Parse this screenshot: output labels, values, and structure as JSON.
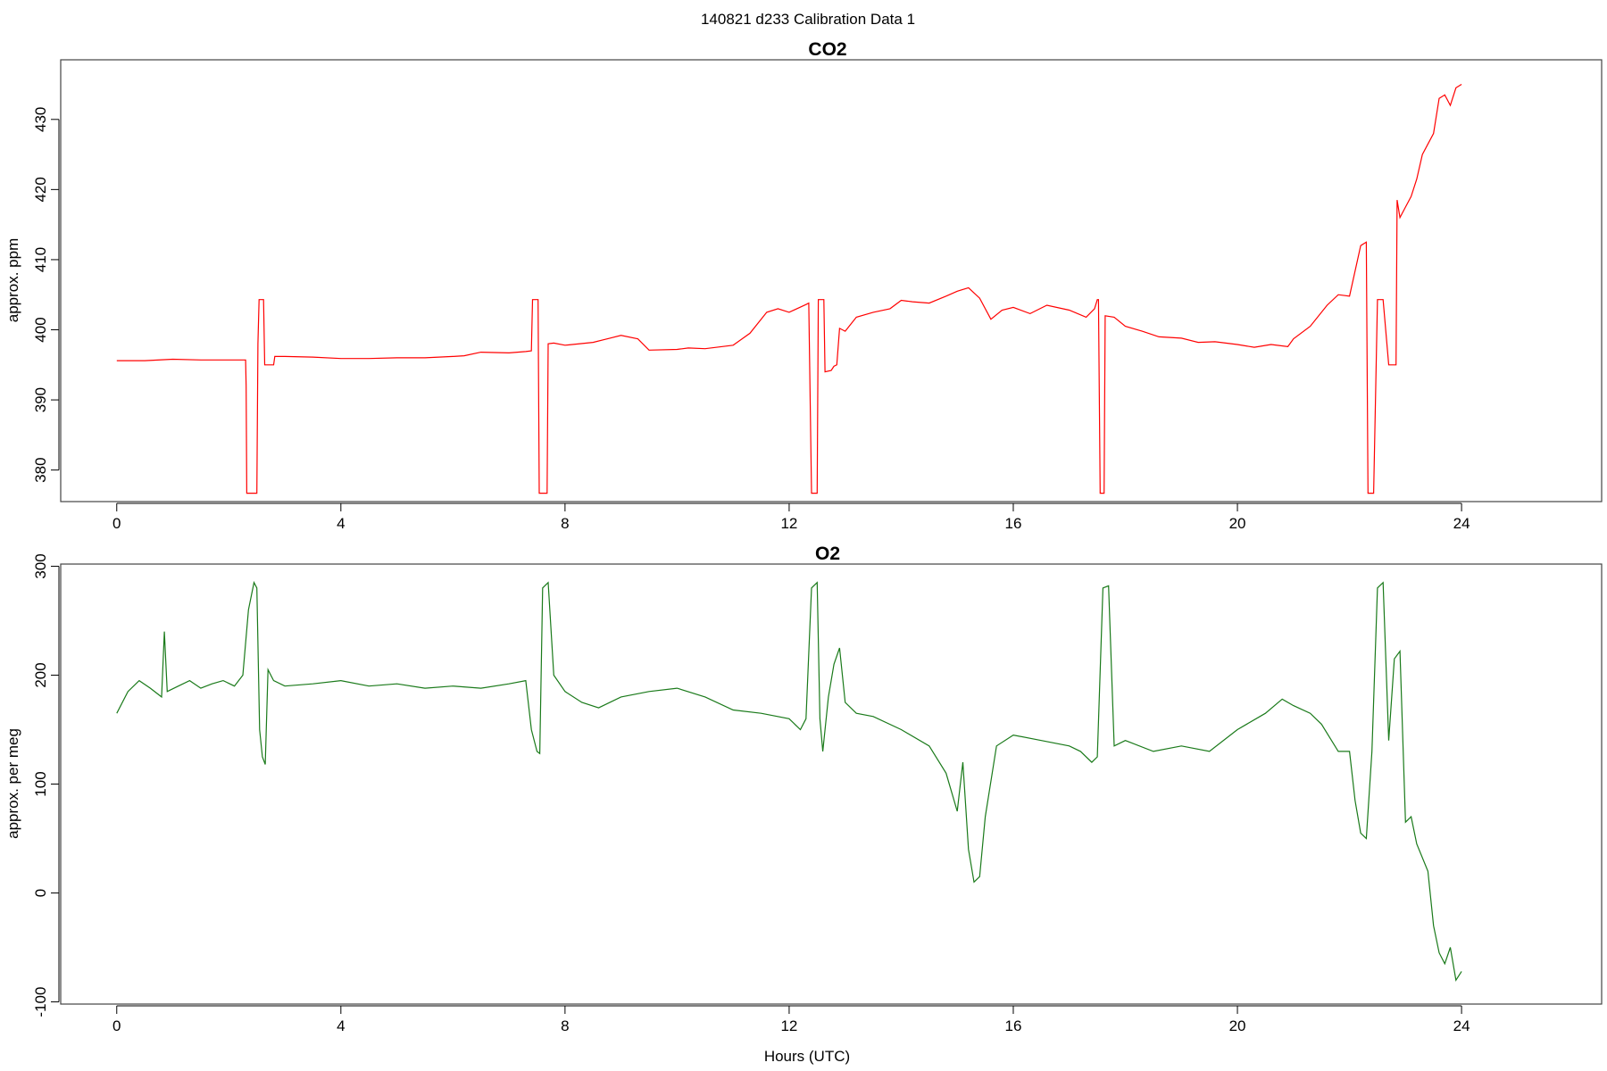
{
  "figure_title": "140821   d233   Calibration Data 1",
  "chart_data": [
    {
      "type": "line",
      "title": "CO2",
      "xlabel": "",
      "ylabel": "approx. ppm",
      "xlim": [
        -1,
        26.5
      ],
      "ylim": [
        375.5,
        438.5
      ],
      "xticks": [
        0,
        4,
        8,
        12,
        16,
        20,
        24
      ],
      "yticks": [
        380,
        390,
        400,
        410,
        420,
        430
      ],
      "grid": false,
      "color": "#ff0000",
      "series": [
        {
          "x": [
            0,
            0.5,
            1.0,
            1.5,
            2.0,
            2.3,
            2.31,
            2.32,
            2.4,
            2.5,
            2.52,
            2.54,
            2.62,
            2.64,
            2.8,
            2.82,
            3.0,
            3.5,
            4.0,
            4.5,
            5.0,
            5.5,
            6.0,
            6.2,
            6.5,
            7.0,
            7.3,
            7.4,
            7.42,
            7.52,
            7.54,
            7.68,
            7.7,
            7.8,
            8.0,
            8.5,
            8.8,
            9.0,
            9.3,
            9.5,
            10.0,
            10.2,
            10.5,
            11.0,
            11.3,
            11.6,
            11.8,
            12.0,
            12.3,
            12.35,
            12.4,
            12.5,
            12.52,
            12.55,
            12.62,
            12.64,
            12.75,
            12.8,
            12.85,
            12.9,
            13.0,
            13.2,
            13.5,
            13.8,
            14.0,
            14.2,
            14.5,
            14.8,
            15.0,
            15.2,
            15.4,
            15.6,
            15.8,
            16.0,
            16.3,
            16.6,
            17.0,
            17.3,
            17.45,
            17.5,
            17.52,
            17.55,
            17.62,
            17.64,
            17.8,
            18.0,
            18.3,
            18.6,
            19.0,
            19.3,
            19.6,
            20.0,
            20.3,
            20.6,
            20.9,
            21.0,
            21.3,
            21.6,
            21.8,
            22.0,
            22.2,
            22.3,
            22.33,
            22.35,
            22.43,
            22.5,
            22.52,
            22.6,
            22.7,
            22.72,
            22.83,
            22.85,
            22.9,
            23.0,
            23.1,
            23.2,
            23.3,
            23.5,
            23.6,
            23.7,
            23.8,
            23.9,
            24.0
          ],
          "y": [
            395.6,
            395.6,
            395.8,
            395.7,
            395.7,
            395.7,
            392.0,
            376.7,
            376.7,
            376.7,
            398.0,
            404.3,
            404.3,
            395.0,
            395.0,
            396.2,
            396.2,
            396.1,
            395.9,
            395.9,
            396.0,
            396.0,
            396.2,
            396.3,
            396.8,
            396.7,
            396.9,
            397.0,
            404.3,
            404.3,
            376.7,
            376.7,
            398.0,
            398.1,
            397.8,
            398.2,
            398.8,
            399.2,
            398.7,
            397.1,
            397.2,
            397.4,
            397.3,
            397.8,
            399.5,
            402.5,
            403.0,
            402.5,
            403.6,
            403.8,
            376.7,
            376.7,
            404.3,
            404.3,
            404.3,
            394.0,
            394.2,
            394.8,
            395.0,
            400.2,
            399.8,
            401.8,
            402.5,
            403.0,
            404.2,
            404.0,
            403.8,
            404.8,
            405.5,
            406.0,
            404.5,
            401.5,
            402.8,
            403.2,
            402.3,
            403.5,
            402.8,
            401.8,
            403.0,
            404.3,
            404.3,
            376.7,
            376.7,
            402.0,
            401.8,
            400.5,
            399.8,
            399.0,
            398.8,
            398.2,
            398.3,
            397.9,
            397.5,
            397.9,
            397.6,
            398.7,
            400.5,
            403.5,
            405.0,
            404.8,
            412.0,
            412.5,
            376.7,
            376.7,
            376.7,
            404.3,
            404.3,
            404.3,
            395.0,
            395.0,
            395.0,
            418.5,
            416.0,
            417.5,
            419.0,
            421.5,
            425.0,
            428.0,
            433.0,
            433.5,
            432.0,
            434.5,
            435.0
          ]
        }
      ]
    },
    {
      "type": "line",
      "title": "O2",
      "xlabel": "Hours (UTC)",
      "ylabel": "approx. per meg",
      "xlim": [
        -1,
        26.5
      ],
      "ylim": [
        -102,
        302
      ],
      "xticks": [
        0,
        4,
        8,
        12,
        16,
        20,
        24
      ],
      "yticks": [
        -100,
        0,
        100,
        200,
        300
      ],
      "grid": false,
      "color": "#1a7a1a",
      "series": [
        {
          "x": [
            0,
            0.2,
            0.4,
            0.6,
            0.8,
            0.85,
            0.9,
            1.1,
            1.3,
            1.5,
            1.7,
            1.9,
            2.1,
            2.25,
            2.35,
            2.45,
            2.5,
            2.55,
            2.6,
            2.65,
            2.7,
            2.8,
            3.0,
            3.5,
            4.0,
            4.5,
            5.0,
            5.5,
            6.0,
            6.5,
            7.0,
            7.3,
            7.4,
            7.5,
            7.55,
            7.6,
            7.7,
            7.8,
            8.0,
            8.3,
            8.6,
            9.0,
            9.5,
            10.0,
            10.5,
            11.0,
            11.5,
            12.0,
            12.2,
            12.3,
            12.4,
            12.5,
            12.55,
            12.6,
            12.7,
            12.8,
            12.9,
            13.0,
            13.2,
            13.5,
            14.0,
            14.5,
            14.8,
            15.0,
            15.1,
            15.2,
            15.3,
            15.4,
            15.5,
            15.7,
            16.0,
            16.5,
            17.0,
            17.2,
            17.4,
            17.5,
            17.6,
            17.7,
            17.8,
            18.0,
            18.5,
            19.0,
            19.5,
            20.0,
            20.5,
            20.8,
            21.0,
            21.3,
            21.5,
            21.8,
            22.0,
            22.1,
            22.2,
            22.3,
            22.4,
            22.5,
            22.6,
            22.7,
            22.8,
            22.9,
            23.0,
            23.1,
            23.2,
            23.4,
            23.5,
            23.6,
            23.7,
            23.8,
            23.9,
            24.0
          ],
          "y": [
            165,
            185,
            195,
            188,
            180,
            240,
            185,
            190,
            195,
            188,
            192,
            195,
            190,
            200,
            260,
            285,
            280,
            150,
            125,
            118,
            205,
            195,
            190,
            192,
            195,
            190,
            192,
            188,
            190,
            188,
            192,
            195,
            150,
            130,
            128,
            280,
            285,
            200,
            185,
            175,
            170,
            180,
            185,
            188,
            180,
            168,
            165,
            160,
            150,
            160,
            280,
            285,
            160,
            130,
            180,
            210,
            225,
            175,
            165,
            162,
            150,
            135,
            110,
            75,
            120,
            40,
            10,
            15,
            70,
            135,
            145,
            140,
            135,
            130,
            120,
            125,
            280,
            282,
            135,
            140,
            130,
            135,
            130,
            150,
            165,
            178,
            172,
            165,
            155,
            130,
            130,
            85,
            55,
            50,
            130,
            280,
            285,
            140,
            215,
            222,
            65,
            70,
            45,
            20,
            -30,
            -55,
            -65,
            -50,
            -80,
            -72
          ]
        }
      ]
    }
  ]
}
